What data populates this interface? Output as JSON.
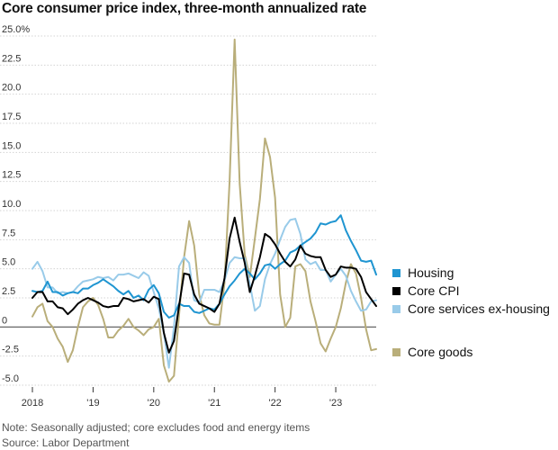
{
  "header": {
    "title": "Core consumer price index, three-month annualized rate"
  },
  "footer": {
    "note": "Note: Seasonally adjusted; core excludes food and energy items",
    "source": "Source: Labor Department"
  },
  "colors": {
    "housing": "#1f95d1",
    "core_cpi": "#000000",
    "core_services": "#99cbe9",
    "core_goods": "#b9ae7a",
    "grid": "#d3d3d3",
    "zero_line": "#555555"
  },
  "chart_data": {
    "type": "line",
    "title": "Core consumer price index, three-month annualized rate",
    "xlabel": "",
    "ylabel": "",
    "ylim": [
      -5,
      25
    ],
    "xlim": [
      "2018-01",
      "2023-09"
    ],
    "y_ticks": [
      {
        "value": 25,
        "label": "25.0%"
      },
      {
        "value": 22.5,
        "label": "22.5"
      },
      {
        "value": 20,
        "label": "20.0"
      },
      {
        "value": 17.5,
        "label": "17.5"
      },
      {
        "value": 15,
        "label": "15.0"
      },
      {
        "value": 12.5,
        "label": "12.5"
      },
      {
        "value": 10,
        "label": "10.0"
      },
      {
        "value": 7.5,
        "label": "7.5"
      },
      {
        "value": 5,
        "label": "5.0"
      },
      {
        "value": 2.5,
        "label": "2.5"
      },
      {
        "value": 0,
        "label": "0"
      },
      {
        "value": -2.5,
        "label": "-2.5"
      },
      {
        "value": -5,
        "label": "-5.0"
      }
    ],
    "x_ticks": [
      {
        "value": "2018-01",
        "label": "2018"
      },
      {
        "value": "2019-01",
        "label": "'19"
      },
      {
        "value": "2020-01",
        "label": "'20"
      },
      {
        "value": "2021-01",
        "label": "'21"
      },
      {
        "value": "2022-01",
        "label": "'22"
      },
      {
        "value": "2023-01",
        "label": "'23"
      }
    ],
    "grid": true,
    "legend_position": "right",
    "x": [
      "2018-01",
      "2018-02",
      "2018-03",
      "2018-04",
      "2018-05",
      "2018-06",
      "2018-07",
      "2018-08",
      "2018-09",
      "2018-10",
      "2018-11",
      "2018-12",
      "2019-01",
      "2019-02",
      "2019-03",
      "2019-04",
      "2019-05",
      "2019-06",
      "2019-07",
      "2019-08",
      "2019-09",
      "2019-10",
      "2019-11",
      "2019-12",
      "2020-01",
      "2020-02",
      "2020-03",
      "2020-04",
      "2020-05",
      "2020-06",
      "2020-07",
      "2020-08",
      "2020-09",
      "2020-10",
      "2020-11",
      "2020-12",
      "2021-01",
      "2021-02",
      "2021-03",
      "2021-04",
      "2021-05",
      "2021-06",
      "2021-07",
      "2021-08",
      "2021-09",
      "2021-10",
      "2021-11",
      "2021-12",
      "2022-01",
      "2022-02",
      "2022-03",
      "2022-04",
      "2022-05",
      "2022-06",
      "2022-07",
      "2022-08",
      "2022-09",
      "2022-10",
      "2022-11",
      "2022-12",
      "2023-01",
      "2023-02",
      "2023-03",
      "2023-04",
      "2023-05",
      "2023-06",
      "2023-07",
      "2023-08",
      "2023-09"
    ],
    "series": [
      {
        "name": "Housing",
        "color_key": "housing",
        "values": [
          3.1,
          3.0,
          3.1,
          3.9,
          3.0,
          3.0,
          2.7,
          2.9,
          3.0,
          2.9,
          3.3,
          3.3,
          3.6,
          3.8,
          4.1,
          3.8,
          3.5,
          3.1,
          2.8,
          3.1,
          2.5,
          2.7,
          2.3,
          3.2,
          3.6,
          2.9,
          1.3,
          0.8,
          1.0,
          2.0,
          1.8,
          1.8,
          1.3,
          1.2,
          1.4,
          1.6,
          1.5,
          2.0,
          2.8,
          3.5,
          4.0,
          4.6,
          5.0,
          4.6,
          4.1,
          4.6,
          5.3,
          5.4,
          5.0,
          5.4,
          5.7,
          6.4,
          6.6,
          7.0,
          7.3,
          7.6,
          8.1,
          8.9,
          8.8,
          9.0,
          9.1,
          9.6,
          8.3,
          7.4,
          6.6,
          5.7,
          5.6,
          5.7,
          4.5
        ]
      },
      {
        "name": "Core CPI",
        "color_key": "core_cpi",
        "values": [
          2.5,
          3.0,
          3.0,
          2.2,
          2.2,
          1.7,
          1.6,
          1.1,
          1.5,
          2.0,
          2.3,
          2.5,
          2.3,
          2.1,
          1.8,
          1.7,
          1.8,
          1.8,
          2.5,
          2.4,
          2.2,
          2.3,
          2.4,
          2.1,
          2.6,
          2.4,
          -0.5,
          -2.2,
          -1.2,
          1.8,
          4.6,
          4.5,
          2.8,
          2.0,
          1.8,
          1.6,
          1.3,
          2.0,
          4.2,
          7.6,
          9.4,
          7.3,
          5.5,
          3.0,
          4.4,
          6.0,
          8.0,
          7.7,
          7.1,
          6.3,
          5.6,
          5.2,
          5.8,
          7.0,
          6.3,
          6.1,
          6.0,
          6.0,
          4.9,
          4.3,
          4.5,
          5.2,
          5.1,
          5.1,
          5.0,
          4.3,
          3.0,
          2.4,
          1.8
        ]
      },
      {
        "name": "Core services ex-housing",
        "color_key": "core_services",
        "values": [
          5.0,
          5.6,
          4.8,
          3.4,
          3.4,
          2.9,
          3.0,
          2.9,
          3.0,
          3.5,
          3.9,
          4.0,
          4.1,
          4.3,
          4.2,
          4.3,
          4.0,
          4.5,
          4.5,
          4.6,
          4.4,
          4.2,
          4.7,
          4.4,
          3.0,
          1.6,
          -0.5,
          -3.5,
          0.0,
          5.2,
          6.0,
          5.5,
          2.3,
          2.1,
          3.2,
          3.2,
          3.2,
          3.0,
          4.0,
          5.5,
          6.0,
          5.9,
          5.9,
          3.7,
          1.4,
          1.8,
          4.1,
          5.4,
          6.3,
          7.5,
          8.6,
          9.2,
          9.3,
          8.0,
          5.8,
          5.4,
          5.6,
          4.9,
          4.9,
          3.9,
          4.5,
          5.0,
          4.4,
          3.1,
          2.2,
          1.4,
          1.5,
          2.2,
          2.3
        ]
      },
      {
        "name": "Core goods",
        "color_key": "core_goods",
        "values": [
          0.9,
          1.7,
          2.0,
          0.5,
          0.0,
          -1.0,
          -1.7,
          -3.0,
          -2.0,
          0.0,
          1.7,
          2.2,
          2.5,
          1.9,
          0.7,
          -0.9,
          -0.9,
          -0.3,
          0.1,
          0.7,
          0.0,
          -0.3,
          -0.7,
          -0.2,
          0.0,
          0.7,
          -3.3,
          -4.7,
          -4.2,
          1.0,
          6.0,
          9.1,
          7.0,
          2.8,
          1.0,
          0.3,
          0.2,
          0.2,
          3.8,
          12.5,
          24.7,
          12.3,
          6.2,
          4.3,
          7.6,
          11.0,
          16.2,
          14.6,
          11.1,
          2.8,
          0.0,
          0.8,
          5.2,
          5.4,
          4.8,
          2.2,
          0.5,
          -1.4,
          -2.1,
          -1.0,
          0.0,
          1.6,
          3.8,
          5.4,
          4.6,
          2.5,
          -0.2,
          -2.0,
          -1.9
        ]
      }
    ]
  }
}
